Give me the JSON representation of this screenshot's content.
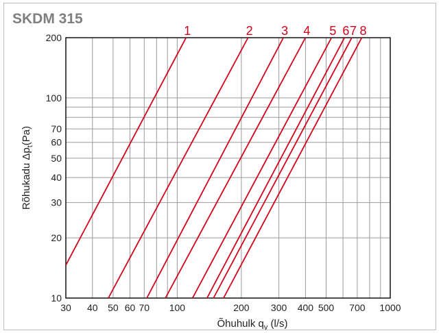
{
  "chart_data": {
    "type": "line",
    "title": "SKDM 315",
    "xlabel": "Õhuhulk q",
    "xlabel_sub": "v",
    "xlabel_unit": " (l/s)",
    "ylabel": "Rõhukadu Δp",
    "ylabel_sub": "t",
    "ylabel_unit": "(Pa)",
    "x_scale": "log",
    "y_scale": "log",
    "xlim": [
      30,
      1000
    ],
    "ylim": [
      10,
      200
    ],
    "grid": true,
    "x_ticks": [
      {
        "value": 30,
        "label": "30"
      },
      {
        "value": 40,
        "label": "40"
      },
      {
        "value": 50,
        "label": "50"
      },
      {
        "value": 60,
        "label": "60"
      },
      {
        "value": 70,
        "label": "70"
      },
      {
        "value": 100,
        "label": "100"
      },
      {
        "value": 200,
        "label": "200"
      },
      {
        "value": 300,
        "label": "300"
      },
      {
        "value": 400,
        "label": "400"
      },
      {
        "value": 500,
        "label": "500"
      },
      {
        "value": 700,
        "label": "700"
      },
      {
        "value": 1000,
        "label": "1000"
      }
    ],
    "x_grid": [
      30,
      40,
      50,
      60,
      70,
      80,
      90,
      100,
      200,
      300,
      400,
      500,
      600,
      700,
      800,
      900,
      1000
    ],
    "y_ticks": [
      {
        "value": 10,
        "label": "10"
      },
      {
        "value": 20,
        "label": "20"
      },
      {
        "value": 30,
        "label": "30"
      },
      {
        "value": 40,
        "label": "40"
      },
      {
        "value": 50,
        "label": "50"
      },
      {
        "value": 60,
        "label": "60"
      },
      {
        "value": 70,
        "label": "70"
      },
      {
        "value": 100,
        "label": "100"
      },
      {
        "value": 200,
        "label": "200"
      }
    ],
    "y_grid": [
      10,
      20,
      30,
      40,
      50,
      60,
      70,
      80,
      90,
      100,
      200
    ],
    "line_color": "#d0021b",
    "series": [
      {
        "name": "1",
        "x": [
          30,
          110
        ],
        "y": [
          14.6,
          200
        ]
      },
      {
        "name": "2",
        "x": [
          47.5,
          215
        ],
        "y": [
          10,
          200
        ]
      },
      {
        "name": "3",
        "x": [
          72,
          315
        ],
        "y": [
          10,
          200
        ]
      },
      {
        "name": "4",
        "x": [
          88,
          400
        ],
        "y": [
          10,
          200
        ]
      },
      {
        "name": "5",
        "x": [
          118,
          530
        ],
        "y": [
          10,
          200
        ]
      },
      {
        "name": "6",
        "x": [
          138,
          610
        ],
        "y": [
          10,
          200
        ]
      },
      {
        "name": "7",
        "x": [
          148,
          660
        ],
        "y": [
          10,
          200
        ]
      },
      {
        "name": "8",
        "x": [
          165,
          735
        ],
        "y": [
          10,
          200
        ]
      }
    ]
  }
}
